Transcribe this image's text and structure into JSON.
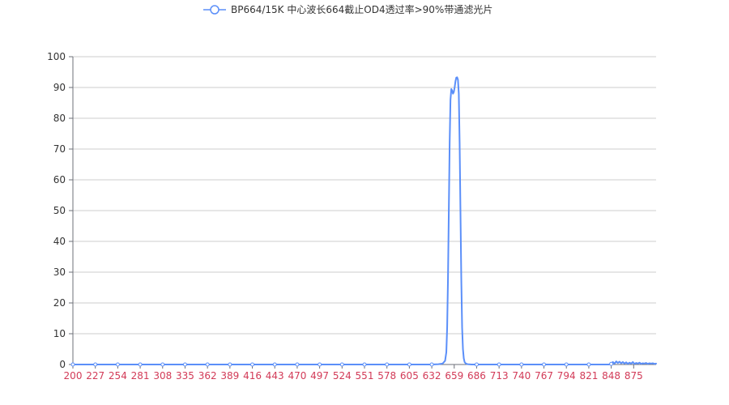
{
  "chart_data": {
    "type": "line",
    "title": "",
    "xlabel": "",
    "ylabel": "",
    "legend": {
      "position": "top-center",
      "entries": [
        "BP664/15K 中心波长664截止OD4透过率>90%带通滤光片"
      ]
    },
    "grid": true,
    "xlim": [
      200,
      902
    ],
    "ylim": [
      0,
      100
    ],
    "x_ticks": [
      200,
      227,
      254,
      281,
      308,
      335,
      362,
      389,
      416,
      443,
      470,
      497,
      524,
      551,
      578,
      605,
      632,
      659,
      686,
      713,
      740,
      767,
      794,
      821,
      848,
      875
    ],
    "y_ticks": [
      0,
      10,
      20,
      30,
      40,
      50,
      60,
      70,
      80,
      90,
      100
    ],
    "series": [
      {
        "name": "BP664/15K 中心波长664截止OD4透过率>90%带通滤光片",
        "x": [
          200,
          227,
          254,
          281,
          308,
          335,
          362,
          389,
          416,
          443,
          470,
          497,
          524,
          551,
          578,
          605,
          632,
          640,
          645,
          648,
          649.5,
          650.5,
          651.5,
          652.5,
          653.5,
          654.5,
          655.5,
          656.5,
          657.5,
          658.5,
          659.5,
          660.5,
          661.5,
          662.5,
          663.5,
          664.5,
          665.5,
          666.5,
          667.5,
          668.5,
          669.5,
          670.5,
          671.5,
          673,
          675,
          680,
          686,
          713,
          740,
          767,
          794,
          821,
          845,
          848,
          850,
          852,
          854,
          856,
          858,
          860,
          862,
          864,
          866,
          868,
          870,
          872,
          874,
          876,
          878,
          880,
          882,
          884,
          886,
          888,
          890,
          892,
          894,
          896,
          898,
          900,
          902
        ],
        "values": [
          0,
          0,
          0,
          0,
          0,
          0,
          0,
          0,
          0,
          0,
          0,
          0,
          0,
          0,
          0,
          0,
          0,
          0.1,
          0.3,
          1.2,
          4,
          12,
          28,
          50,
          72,
          86,
          89.5,
          89,
          88,
          88.5,
          90,
          92,
          93.2,
          93.3,
          92.5,
          88,
          72,
          50,
          28,
          12,
          5,
          2,
          0.8,
          0.3,
          0.1,
          0,
          0,
          0,
          0,
          0,
          0,
          0,
          0,
          0.2,
          0.8,
          0.3,
          1.0,
          0.5,
          0.9,
          0.4,
          0.8,
          0.3,
          0.7,
          0.2,
          0.6,
          0.3,
          0.8,
          0.2,
          0.5,
          0.3,
          0.6,
          0.2,
          0.4,
          0.3,
          0.5,
          0.2,
          0.4,
          0.3,
          0.4,
          0.2,
          0.3
        ]
      }
    ],
    "colors": {
      "line": "#5b8ff9",
      "axis": "#6e7079",
      "x_tick_label": "#d23a57",
      "y_tick_label": "#333333",
      "grid": "#cccccc",
      "legend_text": "#333333"
    }
  }
}
